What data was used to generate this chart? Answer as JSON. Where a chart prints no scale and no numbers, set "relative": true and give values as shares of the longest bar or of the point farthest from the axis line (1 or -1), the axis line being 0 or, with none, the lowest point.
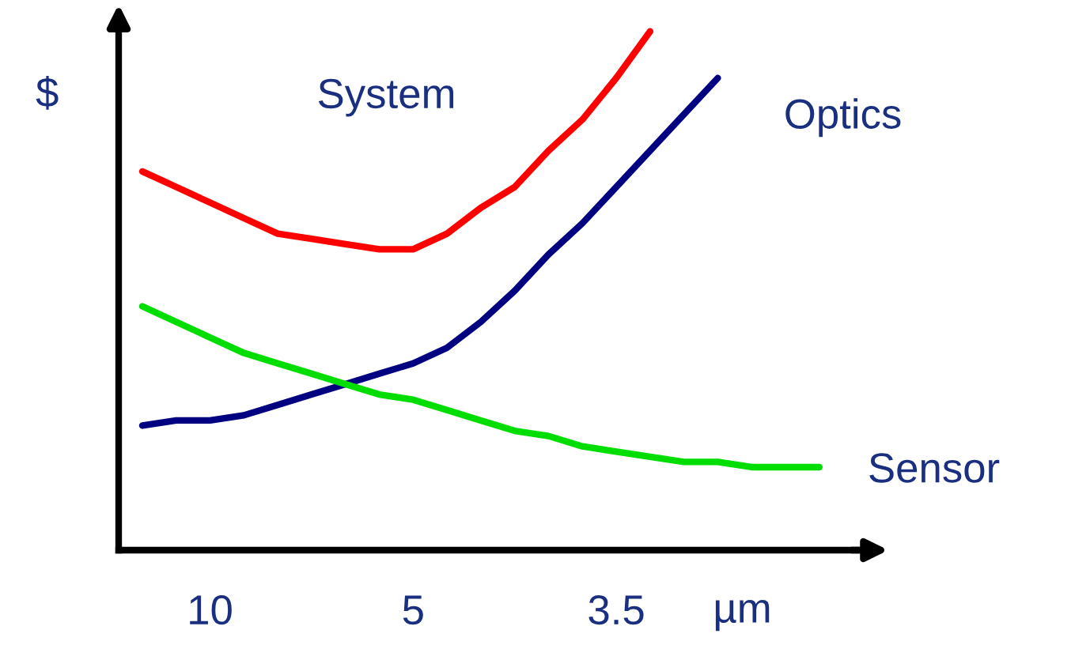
{
  "chart_data": {
    "type": "line",
    "relative": true,
    "ylabel": "$",
    "xlabel": "µm",
    "grid": false,
    "legend": false,
    "marker": "none",
    "line_style": "solid",
    "categories": [
      null,
      null,
      "10",
      null,
      null,
      null,
      null,
      null,
      "5",
      null,
      null,
      null,
      null,
      null,
      "3.5",
      null,
      null,
      null,
      null,
      null,
      null
    ],
    "series": [
      {
        "name": "System",
        "color": "#ff0000",
        "values": [
          0.73,
          0.7,
          0.67,
          0.64,
          0.61,
          0.6,
          0.59,
          0.58,
          0.58,
          0.61,
          0.66,
          0.7,
          0.77,
          0.83,
          0.91,
          1.0,
          null,
          null,
          null,
          null,
          null
        ]
      },
      {
        "name": "Optics",
        "color": "#000080",
        "values": [
          0.24,
          0.25,
          0.25,
          0.26,
          0.28,
          0.3,
          0.32,
          0.34,
          0.36,
          0.39,
          0.44,
          0.5,
          0.57,
          0.63,
          0.7,
          0.77,
          0.84,
          0.91,
          null,
          null,
          null
        ]
      },
      {
        "name": "Sensor",
        "color": "#00dd00",
        "values": [
          0.47,
          0.44,
          0.41,
          0.38,
          0.36,
          0.34,
          0.32,
          0.3,
          0.29,
          0.27,
          0.25,
          0.23,
          0.22,
          0.2,
          0.19,
          0.18,
          0.17,
          0.17,
          0.16,
          0.16,
          0.16
        ]
      }
    ]
  }
}
